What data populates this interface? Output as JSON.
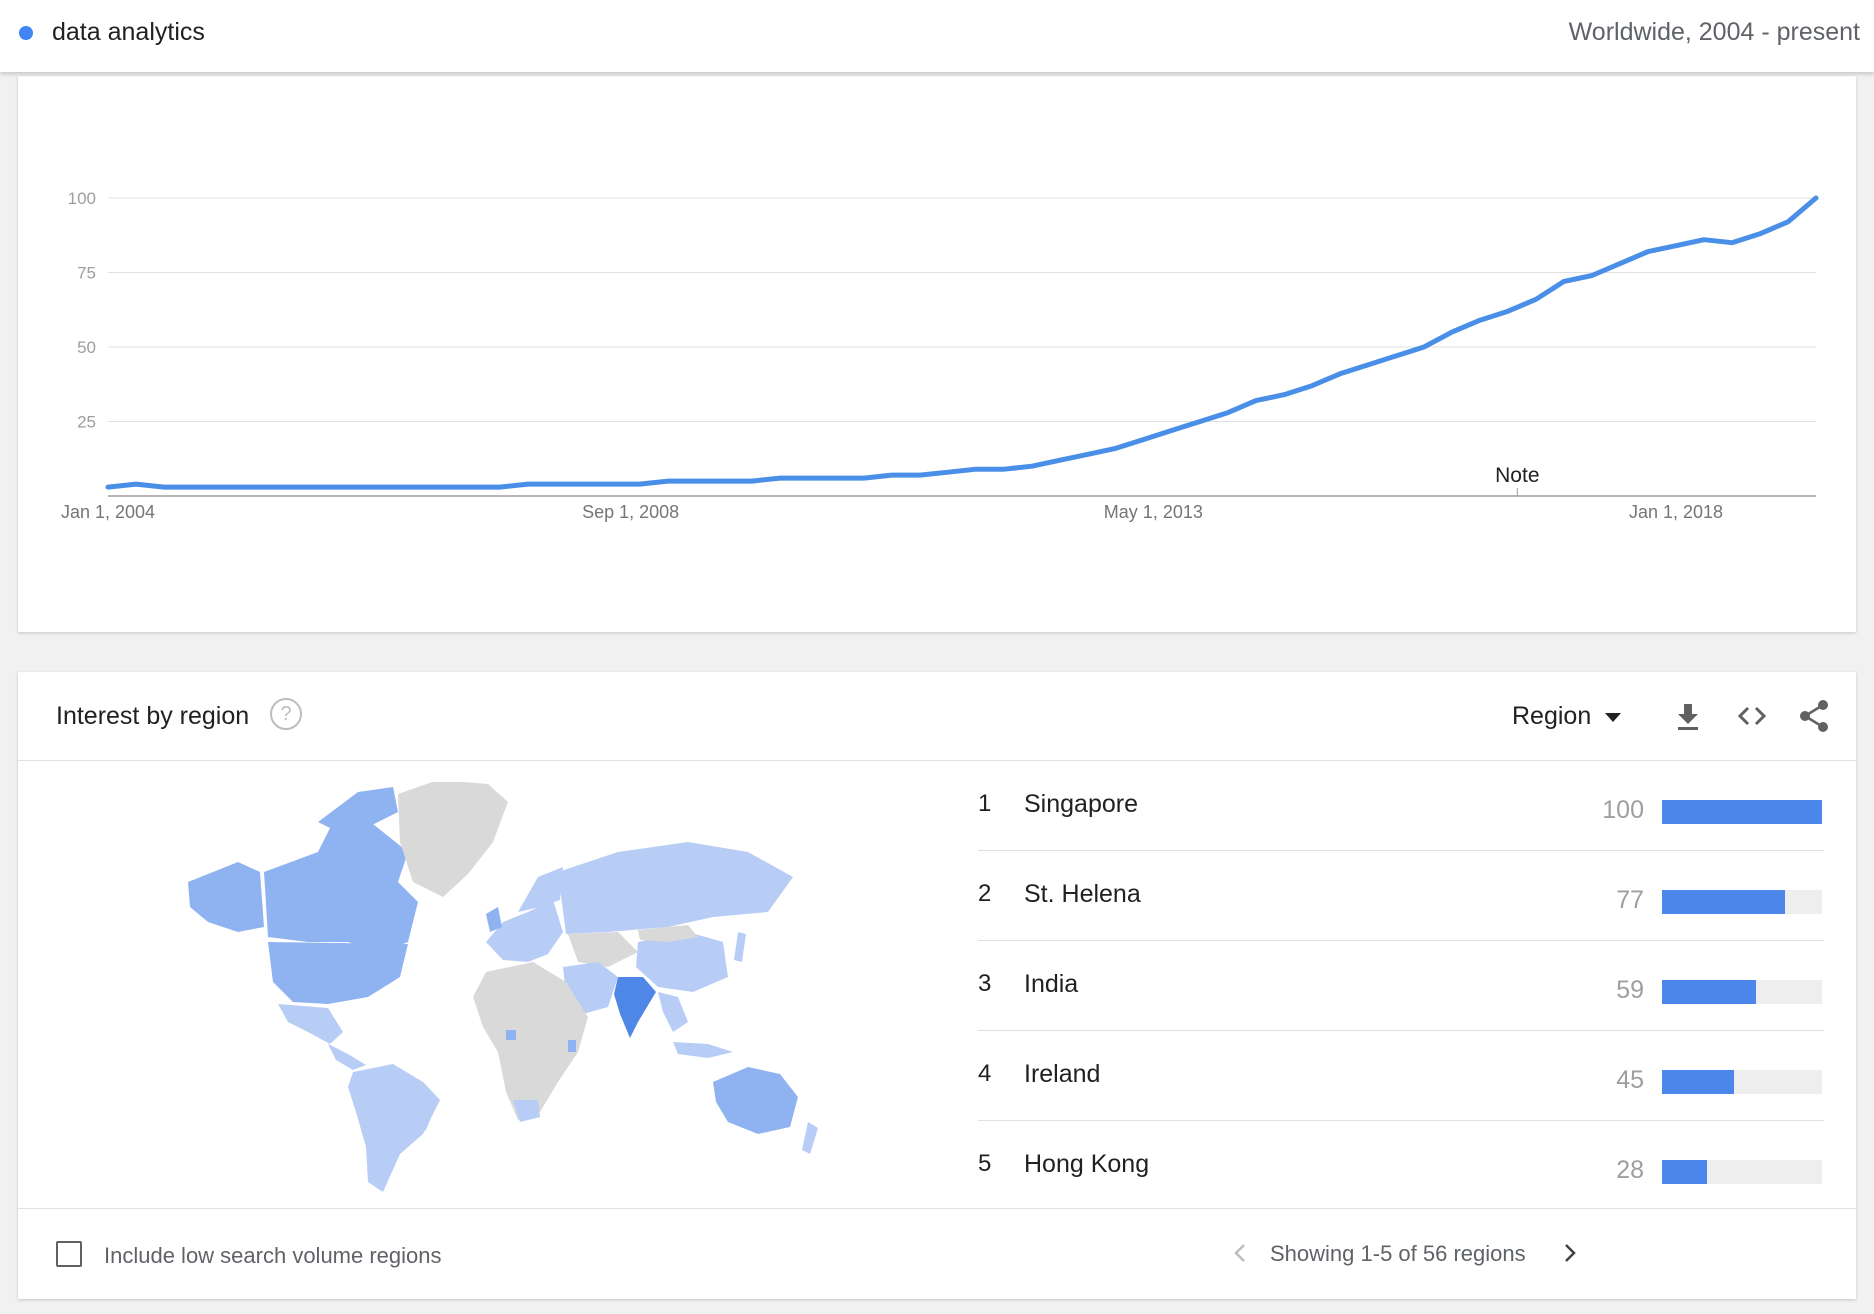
{
  "header": {
    "term": "data analytics",
    "term_color": "#4285f4",
    "scope": "Worldwide, 2004 - present"
  },
  "chart_data": {
    "type": "line",
    "x": [
      "2004-01",
      "2004-04",
      "2004-07",
      "2004-10",
      "2005-01",
      "2005-04",
      "2005-07",
      "2005-10",
      "2006-01",
      "2006-04",
      "2006-07",
      "2006-10",
      "2007-01",
      "2007-04",
      "2007-07",
      "2007-10",
      "2008-01",
      "2008-04",
      "2008-07",
      "2008-10",
      "2009-01",
      "2009-04",
      "2009-07",
      "2009-10",
      "2010-01",
      "2010-04",
      "2010-07",
      "2010-10",
      "2011-01",
      "2011-04",
      "2011-07",
      "2011-10",
      "2012-01",
      "2012-04",
      "2012-07",
      "2012-10",
      "2013-01",
      "2013-04",
      "2013-07",
      "2013-10",
      "2014-01",
      "2014-04",
      "2014-07",
      "2014-10",
      "2015-01",
      "2015-04",
      "2015-07",
      "2015-10",
      "2016-01",
      "2016-04",
      "2016-07",
      "2016-10",
      "2017-01",
      "2017-04",
      "2017-07",
      "2017-10",
      "2018-01",
      "2018-04",
      "2018-07",
      "2018-10",
      "2019-01",
      "2019-04"
    ],
    "series": [
      {
        "name": "data analytics",
        "color": "#4a8fe7",
        "values": [
          3,
          4,
          3,
          3,
          3,
          3,
          3,
          3,
          3,
          3,
          3,
          3,
          3,
          3,
          3,
          4,
          4,
          4,
          4,
          4,
          5,
          5,
          5,
          5,
          6,
          6,
          6,
          6,
          7,
          7,
          8,
          9,
          9,
          10,
          12,
          14,
          16,
          19,
          22,
          25,
          28,
          32,
          34,
          37,
          41,
          44,
          47,
          50,
          55,
          59,
          62,
          66,
          72,
          74,
          78,
          82,
          84,
          86,
          85,
          88,
          92,
          100
        ]
      }
    ],
    "yticks": [
      "100",
      "75",
      "50",
      "25"
    ],
    "ylim": [
      0,
      100
    ],
    "xticks": [
      "Jan 1, 2004",
      "Sep 1, 2008",
      "May 1, 2013",
      "Jan 1, 2018"
    ],
    "annotation": "Note",
    "grid": true,
    "legend": "none"
  },
  "region": {
    "title": "Interest by region",
    "help_glyph": "?",
    "resolution_label": "Region",
    "icons": [
      "download-icon",
      "embed-icon",
      "share-icon"
    ],
    "rows": [
      {
        "rank": "1",
        "name": "Singapore",
        "value": "100",
        "fill": 100
      },
      {
        "rank": "2",
        "name": "St. Helena",
        "value": "77",
        "fill": 77
      },
      {
        "rank": "3",
        "name": "India",
        "value": "59",
        "fill": 59
      },
      {
        "rank": "4",
        "name": "Ireland",
        "value": "45",
        "fill": 45
      },
      {
        "rank": "5",
        "name": "Hong Kong",
        "value": "28",
        "fill": 28
      }
    ],
    "bar_color": "#4d86ea",
    "map_colors": {
      "high": "#4f87e6",
      "mid": "#8fb3f1",
      "low": "#b7cdf6",
      "none": "#d9d9d9"
    },
    "include_low_volume_label": "Include low search volume regions",
    "pager_text": "Showing 1-5 of 56 regions"
  }
}
